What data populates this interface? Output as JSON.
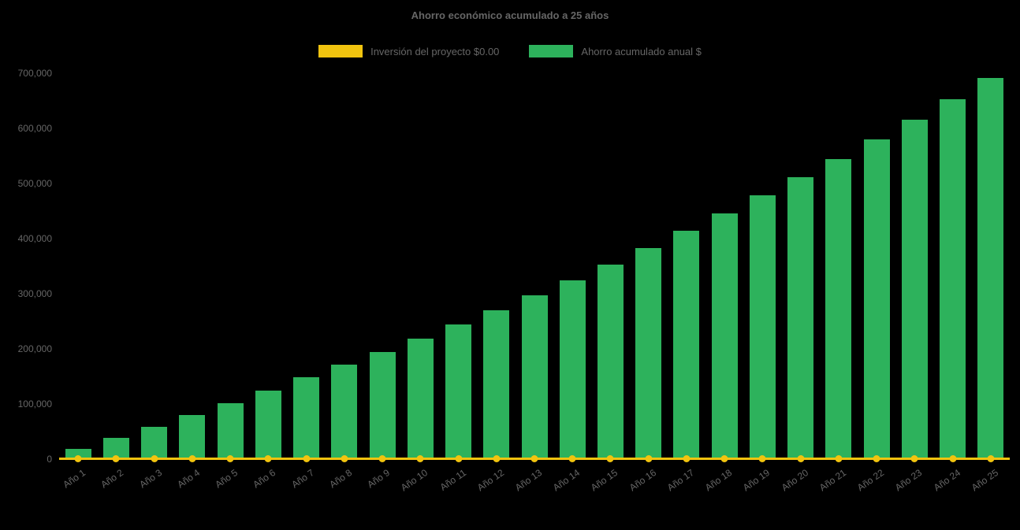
{
  "chart_data": {
    "type": "bar",
    "title": "Ahorro económico acumulado a 25 años",
    "categories": [
      "Año 1",
      "Año 2",
      "Año 3",
      "Año 4",
      "Año 5",
      "Año 6",
      "Año 7",
      "Año 8",
      "Año 9",
      "Año 10",
      "Año 11",
      "Año 12",
      "Año 13",
      "Año 14",
      "Año 15",
      "Año 16",
      "Año 17",
      "Año 18",
      "Año 19",
      "Año 20",
      "Año 21",
      "Año 22",
      "Año 23",
      "Año 24",
      "Año 25"
    ],
    "series": [
      {
        "name": "Inversión del proyecto $0.00",
        "type": "line",
        "color": "#f1c40f",
        "values": [
          0,
          0,
          0,
          0,
          0,
          0,
          0,
          0,
          0,
          0,
          0,
          0,
          0,
          0,
          0,
          0,
          0,
          0,
          0,
          0,
          0,
          0,
          0,
          0,
          0
        ]
      },
      {
        "name": "Ahorro acumulado anual $",
        "type": "bar",
        "color": "#2db25c",
        "values": [
          18000,
          38000,
          59000,
          80000,
          101000,
          125000,
          148000,
          171000,
          194000,
          219000,
          245000,
          270000,
          297000,
          325000,
          353000,
          383000,
          414000,
          446000,
          478000,
          511000,
          545000,
          580000,
          616000,
          653000,
          692000
        ]
      }
    ],
    "ylim": [
      0,
      700000
    ],
    "ytick_step": 100000,
    "ytick_labels": [
      "0",
      "100,000",
      "200,000",
      "300,000",
      "400,000",
      "500,000",
      "600,000",
      "700,000"
    ],
    "grid": false,
    "legend_position": "top",
    "background_color": "#000000",
    "text_color": "#666666"
  }
}
